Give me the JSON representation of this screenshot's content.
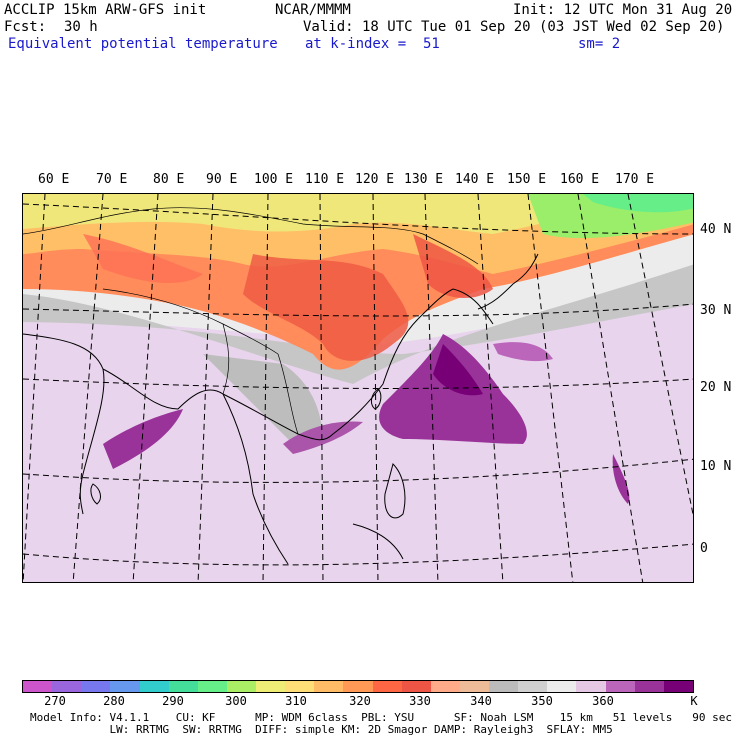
{
  "header": {
    "model": "ACCLIP 15km ARW-GFS init",
    "center": "NCAR/MMMM",
    "init": "Init: 12 UTC Mon 31 Aug 20",
    "fcst_label": "Fcst:",
    "fcst_value": "30 h",
    "valid": "Valid: 18 UTC Tue 01 Sep 20 (03 JST Wed 02 Sep 20)",
    "field": "Equivalent potential temperature",
    "level": "at k-index =  51",
    "smooth": "sm= 2"
  },
  "map": {
    "lon_labels": [
      "60 E",
      "70 E",
      "80 E",
      "90 E",
      "100 E",
      "110 E",
      "120 E",
      "130 E",
      "140 E",
      "150 E",
      "160 E",
      "170 E"
    ],
    "lat_labels": [
      "40 N",
      "30 N",
      "20 N",
      "10 N",
      "0"
    ]
  },
  "colorbar": {
    "colors": [
      "#cc55cc",
      "#9966dd",
      "#7777ee",
      "#6699ee",
      "#33cccc",
      "#44dd99",
      "#66ee88",
      "#aaee66",
      "#eeee77",
      "#ffdd77",
      "#ffbb66",
      "#ff9955",
      "#ff6644",
      "#ee5544",
      "#ffaa88",
      "#eebb99",
      "#bbbbbb",
      "#d0d0d0",
      "#ececec",
      "#e4c8e4",
      "#bb66bb",
      "#993399",
      "#770077"
    ],
    "labels": [
      "270",
      "280",
      "290",
      "300",
      "310",
      "320",
      "330",
      "340",
      "350",
      "360"
    ],
    "unit": "K"
  },
  "footer": {
    "line1": "Model Info: V4.1.1    CU: KF      MP: WDM 6class  PBL: YSU      SF: Noah LSM    15 km   51 levels   90 sec",
    "line2": "            LW: RRTMG  SW: RRTMG  DIFF: simple KM: 2D Smagor DAMP: Rayleigh3  SFLAY: MM5"
  }
}
